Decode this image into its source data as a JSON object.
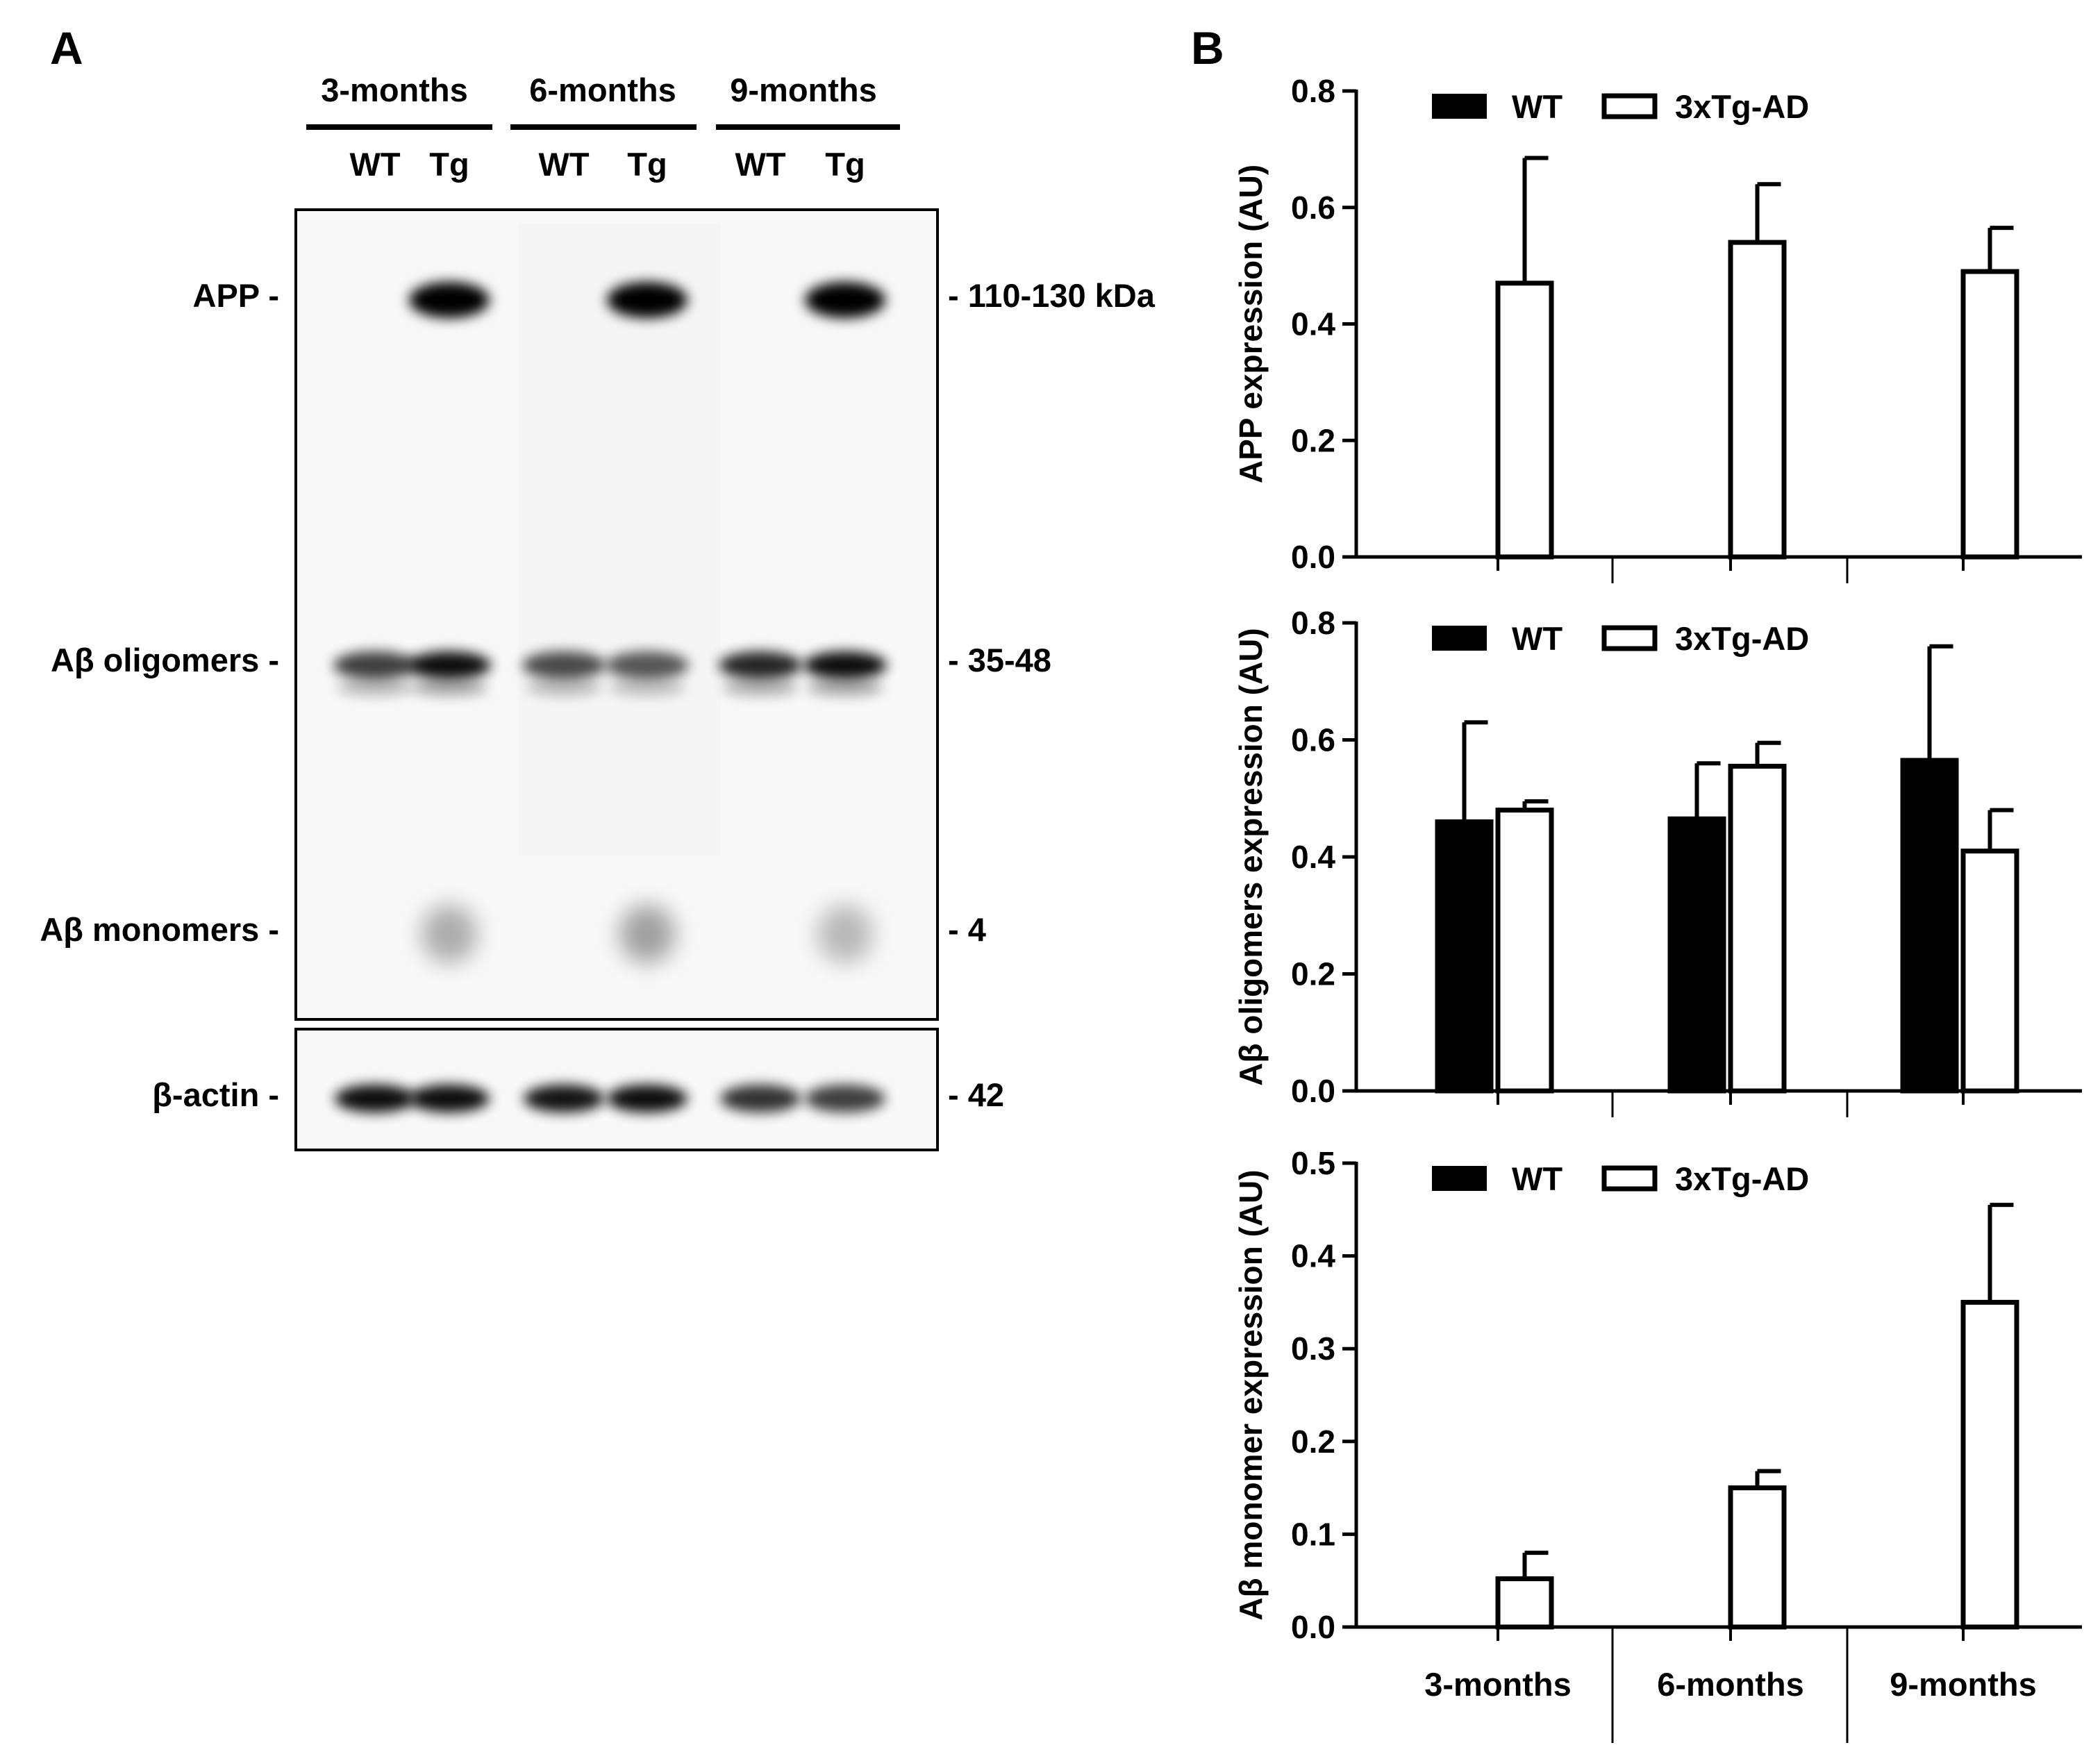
{
  "panel_a": {
    "letter": "A",
    "groups": [
      "3-months",
      "6-months",
      "9-months"
    ],
    "lanes": [
      "WT",
      "Tg",
      "WT",
      "Tg",
      "WT",
      "Tg"
    ],
    "bands": [
      {
        "label": "APP -",
        "size": "- 110-130 kDa"
      },
      {
        "label": "Aβ oligomers -",
        "size": "- 35-48"
      },
      {
        "label": "Aβ monomers -",
        "size": "- 4"
      },
      {
        "label": "β-actin -",
        "size": "- 42"
      }
    ],
    "band_intensity": {
      "app": [
        0,
        1,
        0,
        1,
        0,
        1
      ],
      "oligomers": [
        0.75,
        0.95,
        0.7,
        0.65,
        0.85,
        0.95
      ],
      "monomers": [
        0,
        0.3,
        0,
        0.35,
        0,
        0.25
      ],
      "actin": [
        0.95,
        0.95,
        0.92,
        0.95,
        0.8,
        0.75
      ]
    }
  },
  "panel_b": {
    "letter": "B"
  },
  "chart_data": [
    {
      "type": "bar",
      "title": "",
      "ylabel": "APP expression (AU)",
      "xlabel": "",
      "categories": [
        "3-months",
        "6-months",
        "9-months"
      ],
      "ylim": [
        0,
        0.8
      ],
      "yticks": [
        "0.0",
        "0.2",
        "0.4",
        "0.6",
        "0.8"
      ],
      "legend": [
        "WT",
        "3xTg-AD"
      ],
      "series": [
        {
          "name": "WT",
          "color": "#000000",
          "values": [
            0,
            0,
            0
          ],
          "errors": [
            0,
            0,
            0
          ]
        },
        {
          "name": "3xTg-AD",
          "color": "#ffffff",
          "values": [
            0.47,
            0.54,
            0.49
          ],
          "errors": [
            0.215,
            0.1,
            0.075
          ]
        }
      ]
    },
    {
      "type": "bar",
      "title": "",
      "ylabel": "Aβ oligomers expression (AU)",
      "xlabel": "",
      "categories": [
        "3-months",
        "6-months",
        "9-months"
      ],
      "ylim": [
        0,
        0.8
      ],
      "yticks": [
        "0.0",
        "0.2",
        "0.4",
        "0.6",
        "0.8"
      ],
      "legend": [
        "WT",
        "3xTg-AD"
      ],
      "series": [
        {
          "name": "WT",
          "color": "#000000",
          "values": [
            0.46,
            0.465,
            0.565
          ],
          "errors": [
            0.17,
            0.095,
            0.195
          ]
        },
        {
          "name": "3xTg-AD",
          "color": "#ffffff",
          "values": [
            0.48,
            0.555,
            0.41
          ],
          "errors": [
            0.015,
            0.04,
            0.07
          ]
        }
      ]
    },
    {
      "type": "bar",
      "title": "",
      "ylabel": "Aβ monomer expression (AU)",
      "xlabel": "",
      "categories": [
        "3-months",
        "6-months",
        "9-months"
      ],
      "ylim": [
        0,
        0.5
      ],
      "yticks": [
        "0.0",
        "0.1",
        "0.2",
        "0.3",
        "0.4",
        "0.5"
      ],
      "legend": [
        "WT",
        "3xTg-AD"
      ],
      "series": [
        {
          "name": "WT",
          "color": "#000000",
          "values": [
            0,
            0,
            0
          ],
          "errors": [
            0,
            0,
            0
          ]
        },
        {
          "name": "3xTg-AD",
          "color": "#ffffff",
          "values": [
            0.052,
            0.15,
            0.35
          ],
          "errors": [
            0.028,
            0.018,
            0.105
          ]
        }
      ]
    }
  ]
}
